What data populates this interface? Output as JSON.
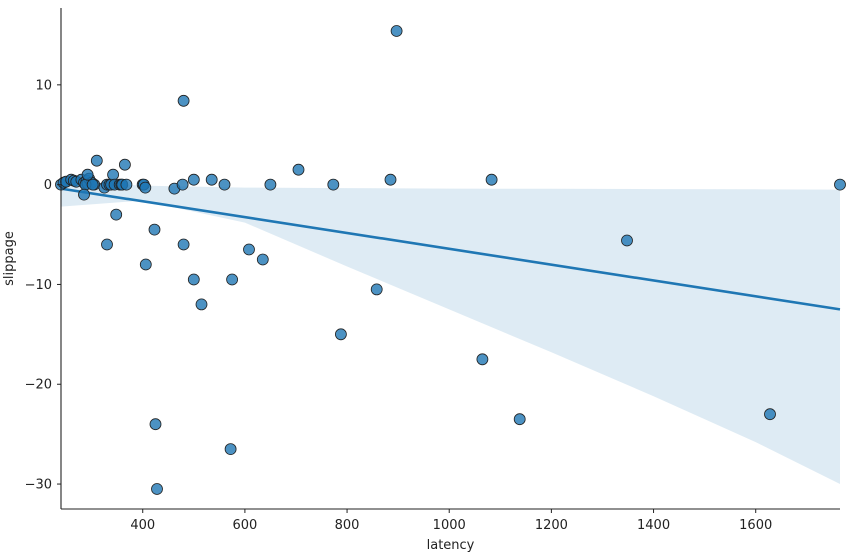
{
  "chart_data": {
    "type": "scatter",
    "title": "",
    "xlabel": "latency",
    "ylabel": "slippage",
    "xlim": [
      240,
      1765
    ],
    "ylim": [
      -32.5,
      17.7
    ],
    "xticks": [
      400,
      600,
      800,
      1000,
      1200,
      1400,
      1600
    ],
    "yticks": [
      -30,
      -20,
      -10,
      0,
      10
    ],
    "grid": false,
    "colors": {
      "points": "#1f77b4",
      "line": "#1f77b4",
      "band": "#1f77b4",
      "axes": "#222222"
    },
    "points": [
      [
        240,
        0
      ],
      [
        245,
        0.2
      ],
      [
        250,
        0.3
      ],
      [
        260,
        0.5
      ],
      [
        265,
        0.4
      ],
      [
        270,
        0.3
      ],
      [
        280,
        0.5
      ],
      [
        285,
        0.2
      ],
      [
        290,
        0.4
      ],
      [
        292,
        0.1
      ],
      [
        295,
        0.6
      ],
      [
        300,
        0.2
      ],
      [
        305,
        0
      ],
      [
        288,
        0
      ],
      [
        285,
        -1
      ],
      [
        292,
        1
      ],
      [
        302,
        0
      ],
      [
        310,
        2.4
      ],
      [
        325,
        -0.3
      ],
      [
        330,
        0
      ],
      [
        335,
        0
      ],
      [
        338,
        0
      ],
      [
        342,
        1
      ],
      [
        345,
        0
      ],
      [
        348,
        -3
      ],
      [
        355,
        0
      ],
      [
        358,
        0
      ],
      [
        360,
        0
      ],
      [
        365,
        2
      ],
      [
        368,
        0
      ],
      [
        330,
        -6
      ],
      [
        400,
        0
      ],
      [
        402,
        0
      ],
      [
        405,
        -0.3
      ],
      [
        406,
        -8
      ],
      [
        423,
        -4.5
      ],
      [
        425,
        -24
      ],
      [
        428,
        -30.5
      ],
      [
        462,
        -0.4
      ],
      [
        478,
        0
      ],
      [
        480,
        8.4
      ],
      [
        480,
        -6
      ],
      [
        500,
        0.5
      ],
      [
        500,
        -9.5
      ],
      [
        515,
        -12
      ],
      [
        535,
        0.5
      ],
      [
        560,
        0
      ],
      [
        572,
        -26.5
      ],
      [
        575,
        -9.5
      ],
      [
        608,
        -6.5
      ],
      [
        635,
        -7.5
      ],
      [
        650,
        0
      ],
      [
        705,
        1.5
      ],
      [
        773,
        0
      ],
      [
        788,
        -15
      ],
      [
        858,
        -10.5
      ],
      [
        885,
        0.5
      ],
      [
        897,
        15.4
      ],
      [
        1065,
        -17.5
      ],
      [
        1083,
        0.5
      ],
      [
        1138,
        -23.5
      ],
      [
        1348,
        -5.6
      ],
      [
        1628,
        -23
      ],
      [
        1765,
        0
      ]
    ],
    "regression": {
      "x": [
        240,
        1765
      ],
      "y": [
        -0.4,
        -12.5
      ]
    },
    "confidence_band": {
      "x": [
        240,
        400,
        600,
        800,
        1000,
        1200,
        1400,
        1600,
        1765
      ],
      "upper": [
        0.3,
        -0.1,
        -0.3,
        -0.35,
        -0.4,
        -0.42,
        -0.45,
        -0.47,
        -0.5
      ],
      "lower": [
        -2.2,
        -1.6,
        -3.8,
        -8.2,
        -12.5,
        -16.8,
        -21.2,
        -25.8,
        -30
      ]
    }
  }
}
